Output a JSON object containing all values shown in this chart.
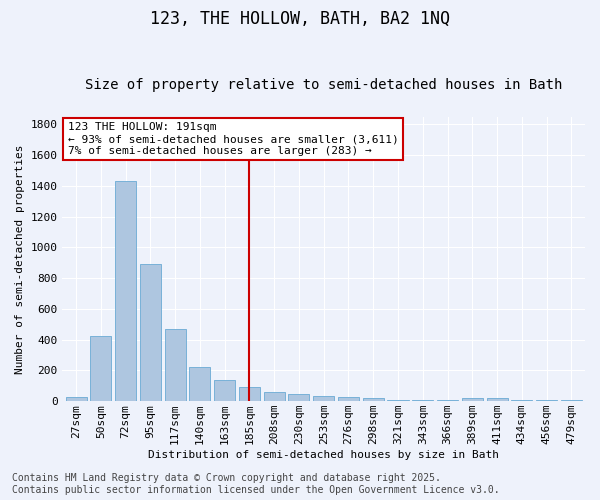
{
  "title": "123, THE HOLLOW, BATH, BA2 1NQ",
  "subtitle": "Size of property relative to semi-detached houses in Bath",
  "xlabel": "Distribution of semi-detached houses by size in Bath",
  "ylabel": "Number of semi-detached properties",
  "categories": [
    "27sqm",
    "50sqm",
    "72sqm",
    "95sqm",
    "117sqm",
    "140sqm",
    "163sqm",
    "185sqm",
    "208sqm",
    "230sqm",
    "253sqm",
    "276sqm",
    "298sqm",
    "321sqm",
    "343sqm",
    "366sqm",
    "389sqm",
    "411sqm",
    "434sqm",
    "456sqm",
    "479sqm"
  ],
  "values": [
    28,
    425,
    1435,
    895,
    468,
    222,
    140,
    95,
    62,
    48,
    32,
    25,
    18,
    10,
    8,
    5,
    20,
    18,
    8,
    8,
    5
  ],
  "bar_color": "#aec6e0",
  "bar_edgecolor": "#6aaad4",
  "bg_color": "#eef2fb",
  "grid_color": "#ffffff",
  "vline_index": 7,
  "annotation_text_line1": "123 THE HOLLOW: 191sqm",
  "annotation_text_line2": "← 93% of semi-detached houses are smaller (3,611)",
  "annotation_text_line3": "7% of semi-detached houses are larger (283) →",
  "annotation_box_facecolor": "#ffffff",
  "annotation_box_edgecolor": "#cc0000",
  "vline_color": "#cc0000",
  "footer_line1": "Contains HM Land Registry data © Crown copyright and database right 2025.",
  "footer_line2": "Contains public sector information licensed under the Open Government Licence v3.0.",
  "ylim": [
    0,
    1850
  ],
  "yticks": [
    0,
    200,
    400,
    600,
    800,
    1000,
    1200,
    1400,
    1600,
    1800
  ],
  "title_fontsize": 12,
  "subtitle_fontsize": 10,
  "axis_label_fontsize": 8,
  "tick_fontsize": 8,
  "annotation_fontsize": 8,
  "footer_fontsize": 7
}
